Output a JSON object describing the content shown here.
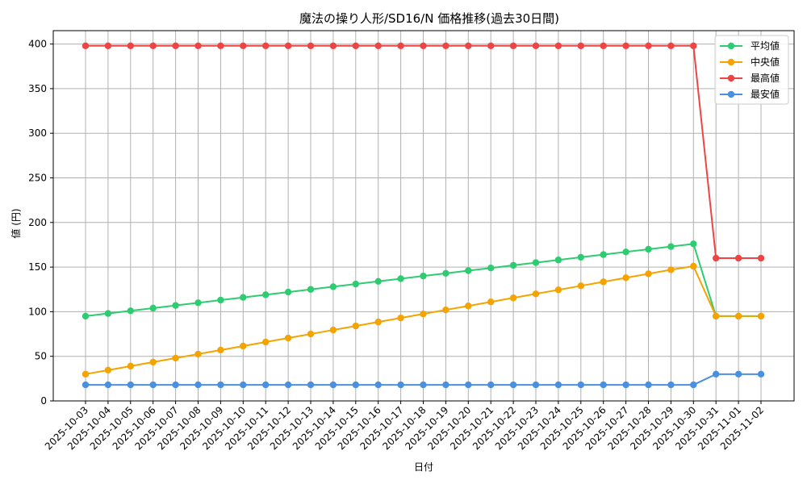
{
  "chart_data": {
    "type": "line",
    "title": "魔法の操り人形/SD16/N 価格推移(過去30日間)",
    "xlabel": "日付",
    "ylabel": "値 (円)",
    "ylim": [
      0,
      415
    ],
    "yticks": [
      0,
      50,
      100,
      150,
      200,
      250,
      300,
      350,
      400
    ],
    "grid": true,
    "legend_position": "top-right",
    "categories": [
      "2025-10-03",
      "2025-10-04",
      "2025-10-05",
      "2025-10-06",
      "2025-10-07",
      "2025-10-08",
      "2025-10-09",
      "2025-10-10",
      "2025-10-11",
      "2025-10-12",
      "2025-10-13",
      "2025-10-14",
      "2025-10-15",
      "2025-10-16",
      "2025-10-17",
      "2025-10-18",
      "2025-10-19",
      "2025-10-20",
      "2025-10-21",
      "2025-10-22",
      "2025-10-23",
      "2025-10-24",
      "2025-10-25",
      "2025-10-26",
      "2025-10-27",
      "2025-10-28",
      "2025-10-29",
      "2025-10-30",
      "2025-10-31",
      "2025-11-01",
      "2025-11-02"
    ],
    "series": [
      {
        "name": "平均値",
        "color": "#2ecc71",
        "values": [
          95,
          98,
          101,
          104,
          107,
          110,
          113,
          116,
          119,
          122,
          125,
          128,
          131,
          134,
          137,
          140,
          143,
          146,
          149,
          152,
          155,
          158,
          161,
          164,
          167,
          170,
          173,
          176,
          95,
          95,
          95
        ]
      },
      {
        "name": "中央値",
        "color": "#f5a300",
        "values": [
          30,
          34.5,
          39,
          43.5,
          48,
          52.5,
          57,
          61.5,
          66,
          70.5,
          75,
          79.5,
          84,
          88.5,
          93,
          97.5,
          102,
          106.5,
          111,
          115.5,
          120,
          124.5,
          129,
          133.5,
          138,
          142.5,
          147,
          151,
          95,
          95,
          95
        ]
      },
      {
        "name": "最高値",
        "color": "#ef4444",
        "values": [
          398,
          398,
          398,
          398,
          398,
          398,
          398,
          398,
          398,
          398,
          398,
          398,
          398,
          398,
          398,
          398,
          398,
          398,
          398,
          398,
          398,
          398,
          398,
          398,
          398,
          398,
          398,
          398,
          160,
          160,
          160
        ]
      },
      {
        "name": "最安値",
        "color": "#4a90e2",
        "values": [
          18,
          18,
          18,
          18,
          18,
          18,
          18,
          18,
          18,
          18,
          18,
          18,
          18,
          18,
          18,
          18,
          18,
          18,
          18,
          18,
          18,
          18,
          18,
          18,
          18,
          18,
          18,
          18,
          30,
          30,
          30
        ]
      }
    ]
  }
}
